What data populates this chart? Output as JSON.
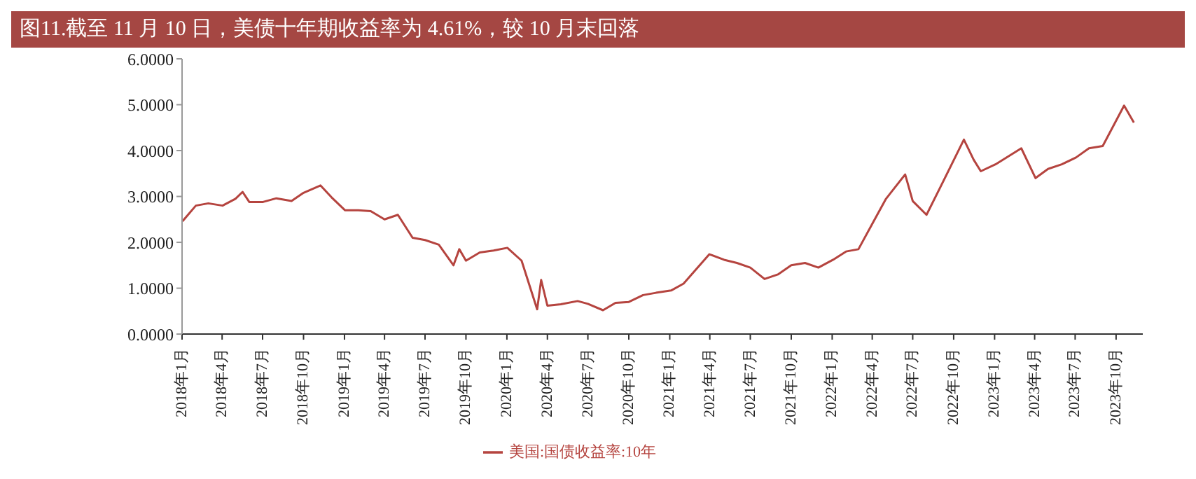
{
  "chart_data": {
    "type": "line",
    "title": "图11.截至 11 月 10 日，美债十年期收益率为 4.61%，较 10 月末回落",
    "x": [
      "2018-01-02",
      "2018-02-01",
      "2018-03-01",
      "2018-04-02",
      "2018-05-01",
      "2018-05-17",
      "2018-06-01",
      "2018-07-02",
      "2018-08-01",
      "2018-09-04",
      "2018-10-01",
      "2018-11-08",
      "2018-12-03",
      "2019-01-02",
      "2019-02-01",
      "2019-03-01",
      "2019-04-01",
      "2019-05-01",
      "2019-06-03",
      "2019-07-01",
      "2019-08-01",
      "2019-09-03",
      "2019-09-16",
      "2019-10-01",
      "2019-11-01",
      "2019-12-02",
      "2020-01-02",
      "2020-02-03",
      "2020-03-09",
      "2020-03-18",
      "2020-04-01",
      "2020-05-01",
      "2020-06-08",
      "2020-07-01",
      "2020-08-04",
      "2020-09-01",
      "2020-10-01",
      "2020-11-02",
      "2020-12-01",
      "2021-01-04",
      "2021-02-01",
      "2021-03-31",
      "2021-05-03",
      "2021-06-01",
      "2021-07-01",
      "2021-08-02",
      "2021-09-01",
      "2021-10-01",
      "2021-11-01",
      "2021-12-01",
      "2022-01-03",
      "2022-02-01",
      "2022-03-01",
      "2022-04-01",
      "2022-05-02",
      "2022-06-14",
      "2022-07-01",
      "2022-08-01",
      "2022-09-01",
      "2022-10-24",
      "2022-11-15",
      "2022-12-01",
      "2023-01-03",
      "2023-03-02",
      "2023-04-03",
      "2023-05-01",
      "2023-06-01",
      "2023-07-03",
      "2023-08-01",
      "2023-09-01",
      "2023-10-19",
      "2023-11-10"
    ],
    "series": [
      {
        "name": "美国:国债收益率:10年",
        "color": "#b5443f",
        "values": [
          2.46,
          2.8,
          2.85,
          2.8,
          2.95,
          3.1,
          2.88,
          2.88,
          2.96,
          2.9,
          3.08,
          3.24,
          2.98,
          2.7,
          2.7,
          2.68,
          2.5,
          2.6,
          2.1,
          2.05,
          1.95,
          1.5,
          1.85,
          1.6,
          1.78,
          1.82,
          1.88,
          1.6,
          0.54,
          1.18,
          0.62,
          0.65,
          0.72,
          0.66,
          0.52,
          0.68,
          0.7,
          0.85,
          0.9,
          0.95,
          1.1,
          1.74,
          1.62,
          1.55,
          1.45,
          1.2,
          1.3,
          1.5,
          1.55,
          1.45,
          1.62,
          1.8,
          1.85,
          2.4,
          2.95,
          3.48,
          2.9,
          2.6,
          3.2,
          4.24,
          3.8,
          3.55,
          3.7,
          4.05,
          3.4,
          3.6,
          3.7,
          3.85,
          4.05,
          4.1,
          4.98,
          4.61
        ]
      }
    ],
    "ylim": [
      0,
      6
    ],
    "yticks": [
      {
        "value": 0,
        "label": "0.0000"
      },
      {
        "value": 1,
        "label": "1.0000"
      },
      {
        "value": 2,
        "label": "2.0000"
      },
      {
        "value": 3,
        "label": "3.0000"
      },
      {
        "value": 4,
        "label": "4.0000"
      },
      {
        "value": 5,
        "label": "5.0000"
      },
      {
        "value": 6,
        "label": "6.0000"
      }
    ],
    "xlim": [
      "2018-01-01",
      "2023-11-30"
    ],
    "xticks": [
      {
        "value": "2018-01-01",
        "label": "2018年1月"
      },
      {
        "value": "2018-04-01",
        "label": "2018年4月"
      },
      {
        "value": "2018-07-01",
        "label": "2018年7月"
      },
      {
        "value": "2018-10-01",
        "label": "2018年10月"
      },
      {
        "value": "2019-01-01",
        "label": "2019年1月"
      },
      {
        "value": "2019-04-01",
        "label": "2019年4月"
      },
      {
        "value": "2019-07-01",
        "label": "2019年7月"
      },
      {
        "value": "2019-10-01",
        "label": "2019年10月"
      },
      {
        "value": "2020-01-01",
        "label": "2020年1月"
      },
      {
        "value": "2020-04-01",
        "label": "2020年4月"
      },
      {
        "value": "2020-07-01",
        "label": "2020年7月"
      },
      {
        "value": "2020-10-01",
        "label": "2020年10月"
      },
      {
        "value": "2021-01-01",
        "label": "2021年1月"
      },
      {
        "value": "2021-04-01",
        "label": "2021年4月"
      },
      {
        "value": "2021-07-01",
        "label": "2021年7月"
      },
      {
        "value": "2021-10-01",
        "label": "2021年10月"
      },
      {
        "value": "2022-01-01",
        "label": "2022年1月"
      },
      {
        "value": "2022-04-01",
        "label": "2022年4月"
      },
      {
        "value": "2022-07-01",
        "label": "2022年7月"
      },
      {
        "value": "2022-10-01",
        "label": "2022年10月"
      },
      {
        "value": "2023-01-01",
        "label": "2023年1月"
      },
      {
        "value": "2023-04-01",
        "label": "2023年4月"
      },
      {
        "value": "2023-07-01",
        "label": "2023年7月"
      },
      {
        "value": "2023-10-01",
        "label": "2023年10月"
      }
    ],
    "grid": false,
    "legend": "bottom",
    "marker": "none",
    "line_style": "solid"
  }
}
